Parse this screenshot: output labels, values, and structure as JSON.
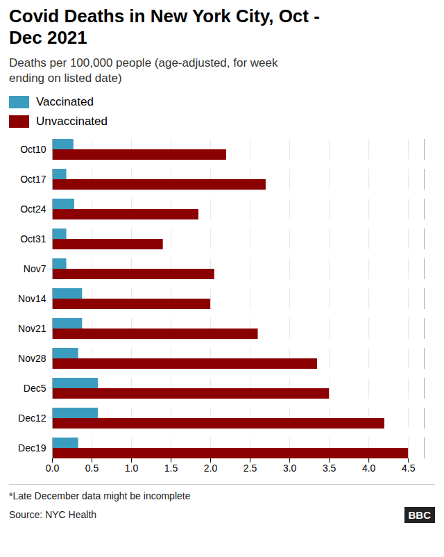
{
  "chart_data": {
    "type": "bar",
    "orientation": "horizontal",
    "title": "Covid Deaths in New York City, Oct -\nDec 2021",
    "subtitle": "Deaths per 100,000 people (age-adjusted, for week\nending on listed date)",
    "categories": [
      "Oct10",
      "Oct17",
      "Oct24",
      "Oct31",
      "Nov7",
      "Nov14",
      "Nov21",
      "Nov28",
      "Dec5",
      "Dec12",
      "Dec19"
    ],
    "series": [
      {
        "name": "Vaccinated",
        "color": "#3a9dbf",
        "values": [
          0.27,
          0.18,
          0.28,
          0.18,
          0.18,
          0.38,
          0.38,
          0.33,
          0.58,
          0.58,
          0.33
        ]
      },
      {
        "name": "Unvaccinated",
        "color": "#8b0000",
        "values": [
          2.2,
          2.7,
          1.85,
          1.4,
          2.05,
          2.0,
          2.6,
          3.35,
          3.5,
          4.2,
          4.5
        ]
      }
    ],
    "xlim": [
      0,
      4.7
    ],
    "xticks": [
      {
        "value": 0.0,
        "label": "0.0"
      },
      0.5,
      {
        "value": 1.0,
        "label": "1.0"
      },
      1.5,
      {
        "value": 2.0,
        "label": "2.0"
      },
      2.5,
      {
        "value": 3.0,
        "label": "3.0"
      },
      3.5,
      {
        "value": 4.0,
        "label": "4.0"
      },
      4.5
    ],
    "grid": true,
    "legend": "top-left",
    "footnote": "*Late December data might be incomplete",
    "source": "Source: NYC Health",
    "logo": "BBC"
  }
}
